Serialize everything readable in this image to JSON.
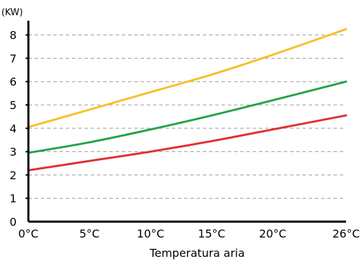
{
  "chart_data": {
    "type": "line",
    "y_unit": "(KW)",
    "xlabel": "Temperatura aria",
    "x_tick_labels": [
      "0°C",
      "5°C",
      "10°C",
      "15°C",
      "20°C",
      "26°C"
    ],
    "y_tick_labels": [
      "0",
      "1",
      "2",
      "3",
      "4",
      "5",
      "6",
      "7",
      "8"
    ],
    "xlim": [
      0,
      26
    ],
    "ylim": [
      0,
      8.4
    ],
    "grid": "horizontal dashed",
    "series": [
      {
        "color": "#f5c02a",
        "x": [
          0,
          5,
          10,
          15,
          20,
          26
        ],
        "y": [
          4.05,
          4.8,
          5.55,
          6.3,
          7.15,
          8.25
        ]
      },
      {
        "color": "#22a34a",
        "x": [
          0,
          5,
          10,
          15,
          20,
          26
        ],
        "y": [
          2.95,
          3.4,
          3.95,
          4.55,
          5.2,
          6.0
        ]
      },
      {
        "color": "#e03030",
        "x": [
          0,
          5,
          10,
          15,
          20,
          26
        ],
        "y": [
          2.2,
          2.6,
          3.0,
          3.45,
          3.95,
          4.55
        ]
      }
    ]
  }
}
